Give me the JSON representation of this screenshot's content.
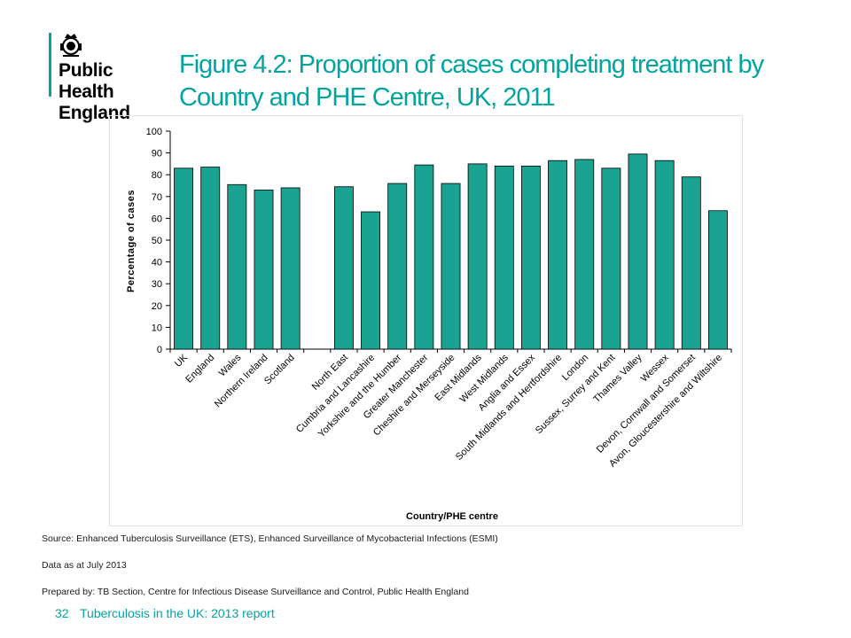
{
  "logo": {
    "line1": "Public Health",
    "line2": "England"
  },
  "title": "Figure 4.2: Proportion of cases completing treatment by Country and PHE Centre, UK, 2011",
  "colors": {
    "accent": "#00a5a0",
    "bar": "#1aa393",
    "bar_stroke": "#000000"
  },
  "chart_data": {
    "type": "bar",
    "title": "",
    "xlabel": "Country/PHE centre",
    "ylabel": "Percentage of cases",
    "ylim": [
      0,
      100
    ],
    "yticks": [
      0,
      10,
      20,
      30,
      40,
      50,
      60,
      70,
      80,
      90,
      100
    ],
    "categories": [
      "UK",
      "England",
      "Wales",
      "Northern Ireland",
      "Scotland",
      "",
      "North East",
      "Cumbria and Lancashire",
      "Yorkshire and the Humber",
      "Greater Manchester",
      "Cheshire and Merseyside",
      "East Midlands",
      "West Midlands",
      "Anglia and Essex",
      "South Midlands and Hertfordshire",
      "London",
      "Sussex, Surrey and Kent",
      "Thames  Valley",
      "Wessex",
      "Devon, Cornwall and Somerset",
      "Avon, Gloucestershire and Wiltshire"
    ],
    "values": [
      83,
      83.5,
      75.5,
      73,
      74,
      null,
      74.5,
      63,
      76,
      84.5,
      76,
      85,
      84,
      84,
      86.5,
      87,
      83,
      89.5,
      86.5,
      79,
      63.5
    ]
  },
  "footnotes": {
    "source": "Source: Enhanced Tuberculosis Surveillance (ETS),  Enhanced Surveillance of Mycobacterial Infections (ESMI)",
    "data_as_at": "Data as at July 2013",
    "prepared_by": "Prepared by: TB Section, Centre for Infectious Disease Surveillance and Control, Public Health England"
  },
  "footer": {
    "page_number": "32",
    "report_title": "Tuberculosis in the UK: 2013 report"
  }
}
